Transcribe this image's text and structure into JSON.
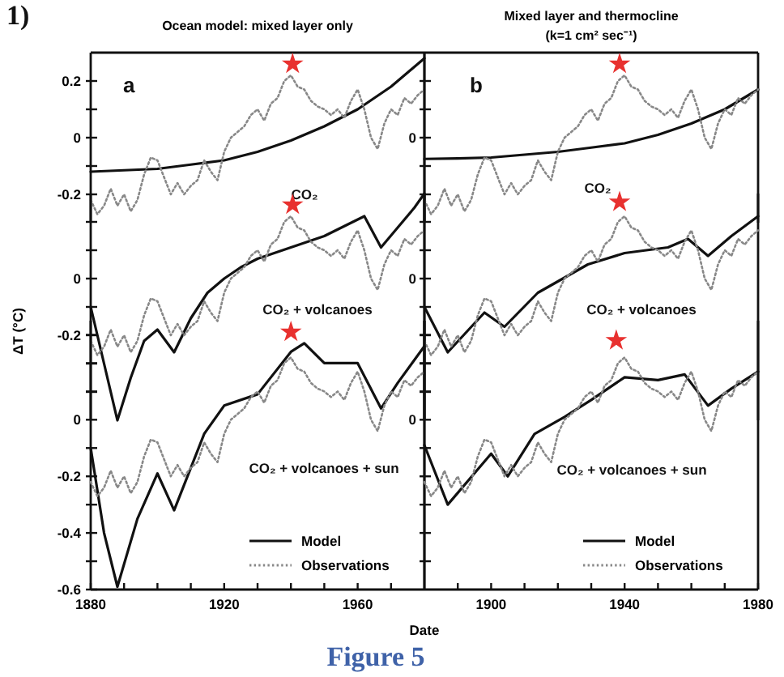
{
  "chart_data": [
    {
      "type": "line",
      "title": "Ocean model: mixed layer only",
      "annotations": [
        "1)",
        "a",
        "CO₂"
      ],
      "xlim": [
        1880,
        1980
      ],
      "ylim": [
        -0.3,
        0.3
      ],
      "yticks": [
        0.2,
        {
          "value": 0.1,
          "label": null
        },
        0,
        {
          "value": -0.1,
          "label": null
        },
        -0.2
      ],
      "tick_labels": "y",
      "series": [
        {
          "color": "#111111",
          "line_style": "solid",
          "x": [
            1880,
            1890,
            1900,
            1910,
            1920,
            1930,
            1940,
            1950,
            1960,
            1970,
            1980
          ],
          "values": [
            -0.12,
            -0.115,
            -0.11,
            -0.095,
            -0.08,
            -0.05,
            -0.01,
            0.04,
            0.1,
            0.18,
            0.28
          ]
        },
        {
          "color": "#888888",
          "line_style": "dotted",
          "x": [
            1880,
            1882,
            1884,
            1886,
            1888,
            1890,
            1892,
            1894,
            1896,
            1898,
            1900,
            1902,
            1904,
            1906,
            1908,
            1910,
            1912,
            1914,
            1916,
            1918,
            1920,
            1922,
            1924,
            1926,
            1928,
            1930,
            1932,
            1934,
            1936,
            1938,
            1940,
            1942,
            1944,
            1946,
            1948,
            1950,
            1952,
            1954,
            1956,
            1958,
            1960,
            1962,
            1964,
            1966,
            1968,
            1970,
            1972,
            1974,
            1976,
            1978,
            1980
          ],
          "values": [
            -0.22,
            -0.27,
            -0.24,
            -0.18,
            -0.24,
            -0.2,
            -0.26,
            -0.22,
            -0.13,
            -0.07,
            -0.08,
            -0.14,
            -0.2,
            -0.16,
            -0.2,
            -0.17,
            -0.15,
            -0.08,
            -0.12,
            -0.15,
            -0.05,
            0.0,
            0.02,
            0.04,
            0.08,
            0.1,
            0.06,
            0.12,
            0.14,
            0.2,
            0.22,
            0.18,
            0.17,
            0.13,
            0.11,
            0.1,
            0.08,
            0.1,
            0.07,
            0.13,
            0.17,
            0.1,
            0.0,
            -0.04,
            0.05,
            0.1,
            0.08,
            0.14,
            0.12,
            0.15,
            0.17
          ]
        },
        {
          "type": "scatter",
          "marker": "star",
          "color": "#e8312f",
          "x": [
            1940.5
          ],
          "values": [
            0.26
          ]
        }
      ]
    },
    {
      "type": "line",
      "title": "Mixed layer and thermocline",
      "subtitle": "(k=1 cm² sec⁻¹)",
      "annotations": [
        "b",
        "CO₂",
        "0"
      ],
      "xlim": [
        1880,
        1980
      ],
      "ylim": [
        -0.3,
        0.3
      ],
      "yticks": [
        {
          "value": 0.2,
          "label": null
        },
        {
          "value": 0.1,
          "label": null
        },
        {
          "value": 0,
          "label": null
        },
        {
          "value": -0.1,
          "label": null
        },
        {
          "value": -0.2,
          "label": null
        }
      ],
      "tick_labels": false,
      "series": [
        {
          "color": "#111111",
          "line_style": "solid",
          "x": [
            1880,
            1890,
            1900,
            1910,
            1920,
            1930,
            1940,
            1950,
            1960,
            1970,
            1980
          ],
          "values": [
            -0.075,
            -0.073,
            -0.07,
            -0.06,
            -0.05,
            -0.035,
            -0.02,
            0.01,
            0.05,
            0.1,
            0.17
          ]
        },
        {
          "color": "#888888",
          "line_style": "dotted",
          "x": [
            1880,
            1882,
            1884,
            1886,
            1888,
            1890,
            1892,
            1894,
            1896,
            1898,
            1900,
            1902,
            1904,
            1906,
            1908,
            1910,
            1912,
            1914,
            1916,
            1918,
            1920,
            1922,
            1924,
            1926,
            1928,
            1930,
            1932,
            1934,
            1936,
            1938,
            1940,
            1942,
            1944,
            1946,
            1948,
            1950,
            1952,
            1954,
            1956,
            1958,
            1960,
            1962,
            1964,
            1966,
            1968,
            1970,
            1972,
            1974,
            1976,
            1978,
            1980
          ],
          "values": [
            -0.22,
            -0.27,
            -0.24,
            -0.18,
            -0.24,
            -0.2,
            -0.26,
            -0.22,
            -0.13,
            -0.07,
            -0.08,
            -0.14,
            -0.2,
            -0.16,
            -0.2,
            -0.17,
            -0.15,
            -0.08,
            -0.12,
            -0.15,
            -0.05,
            0.0,
            0.02,
            0.04,
            0.08,
            0.1,
            0.06,
            0.12,
            0.14,
            0.2,
            0.22,
            0.18,
            0.17,
            0.13,
            0.11,
            0.1,
            0.08,
            0.1,
            0.07,
            0.13,
            0.17,
            0.1,
            0.0,
            -0.04,
            0.05,
            0.1,
            0.08,
            0.14,
            0.12,
            0.15,
            0.17
          ]
        },
        {
          "type": "scatter",
          "marker": "star",
          "color": "#e8312f",
          "x": [
            1938.5
          ],
          "values": [
            0.26
          ]
        }
      ]
    },
    {
      "type": "line",
      "ylabel": "ΔT (°C)",
      "annotations": [
        "CO₂ + volcanoes"
      ],
      "xlim": [
        1880,
        1980
      ],
      "ylim": [
        -0.5,
        0.3
      ],
      "yticks": [
        {
          "value": 0.2,
          "label": null
        },
        {
          "value": 0.1,
          "label": null
        },
        0,
        {
          "value": -0.1,
          "label": null
        },
        -0.2,
        {
          "value": -0.3,
          "label": null
        },
        {
          "value": -0.4,
          "label": null
        }
      ],
      "tick_labels": "y",
      "series": [
        {
          "color": "#111111",
          "line_style": "solid",
          "x": [
            1880,
            1884,
            1888,
            1892,
            1896,
            1900,
            1905,
            1910,
            1915,
            1920,
            1925,
            1930,
            1940,
            1950,
            1962,
            1967,
            1972,
            1977,
            1980
          ],
          "values": [
            -0.1,
            -0.3,
            -0.5,
            -0.35,
            -0.22,
            -0.18,
            -0.26,
            -0.14,
            -0.05,
            0.0,
            0.04,
            0.07,
            0.11,
            0.15,
            0.22,
            0.11,
            0.18,
            0.25,
            0.3
          ]
        },
        {
          "color": "#888888",
          "line_style": "dotted",
          "x": [
            1880,
            1882,
            1884,
            1886,
            1888,
            1890,
            1892,
            1894,
            1896,
            1898,
            1900,
            1902,
            1904,
            1906,
            1908,
            1910,
            1912,
            1914,
            1916,
            1918,
            1920,
            1922,
            1924,
            1926,
            1928,
            1930,
            1932,
            1934,
            1936,
            1938,
            1940,
            1942,
            1944,
            1946,
            1948,
            1950,
            1952,
            1954,
            1956,
            1958,
            1960,
            1962,
            1964,
            1966,
            1968,
            1970,
            1972,
            1974,
            1976,
            1978,
            1980
          ],
          "values": [
            -0.22,
            -0.27,
            -0.24,
            -0.18,
            -0.24,
            -0.2,
            -0.26,
            -0.22,
            -0.13,
            -0.07,
            -0.08,
            -0.14,
            -0.2,
            -0.16,
            -0.2,
            -0.17,
            -0.15,
            -0.08,
            -0.12,
            -0.15,
            -0.05,
            0.0,
            0.02,
            0.04,
            0.08,
            0.1,
            0.06,
            0.12,
            0.14,
            0.2,
            0.22,
            0.18,
            0.17,
            0.13,
            0.11,
            0.1,
            0.08,
            0.1,
            0.07,
            0.13,
            0.17,
            0.1,
            0.0,
            -0.04,
            0.05,
            0.1,
            0.08,
            0.14,
            0.12,
            0.15,
            0.17
          ]
        },
        {
          "type": "scatter",
          "marker": "star",
          "color": "#e8312f",
          "x": [
            1940.5
          ],
          "values": [
            0.26
          ]
        }
      ]
    },
    {
      "type": "line",
      "annotations": [
        "CO₂ + volcanoes",
        "0"
      ],
      "xlim": [
        1880,
        1980
      ],
      "ylim": [
        -0.5,
        0.3
      ],
      "yticks": [
        {
          "value": 0.2,
          "label": null
        },
        {
          "value": 0.1,
          "label": null
        },
        {
          "value": 0,
          "label": null
        },
        {
          "value": -0.1,
          "label": null
        },
        {
          "value": -0.2,
          "label": null
        },
        {
          "value": -0.3,
          "label": null
        },
        {
          "value": -0.4,
          "label": null
        }
      ],
      "tick_labels": false,
      "series": [
        {
          "color": "#111111",
          "line_style": "solid",
          "x": [
            1880,
            1887,
            1898,
            1904,
            1914,
            1929,
            1940,
            1953,
            1959,
            1965,
            1972,
            1980
          ],
          "values": [
            -0.1,
            -0.26,
            -0.12,
            -0.17,
            -0.05,
            0.05,
            0.09,
            0.11,
            0.14,
            0.08,
            0.15,
            0.22
          ]
        },
        {
          "color": "#888888",
          "line_style": "dotted",
          "x": [
            1880,
            1882,
            1884,
            1886,
            1888,
            1890,
            1892,
            1894,
            1896,
            1898,
            1900,
            1902,
            1904,
            1906,
            1908,
            1910,
            1912,
            1914,
            1916,
            1918,
            1920,
            1922,
            1924,
            1926,
            1928,
            1930,
            1932,
            1934,
            1936,
            1938,
            1940,
            1942,
            1944,
            1946,
            1948,
            1950,
            1952,
            1954,
            1956,
            1958,
            1960,
            1962,
            1964,
            1966,
            1968,
            1970,
            1972,
            1974,
            1976,
            1978,
            1980
          ],
          "values": [
            -0.22,
            -0.27,
            -0.24,
            -0.18,
            -0.24,
            -0.2,
            -0.26,
            -0.22,
            -0.13,
            -0.07,
            -0.08,
            -0.14,
            -0.2,
            -0.16,
            -0.2,
            -0.17,
            -0.15,
            -0.08,
            -0.12,
            -0.15,
            -0.05,
            0.0,
            0.02,
            0.04,
            0.08,
            0.1,
            0.06,
            0.12,
            0.14,
            0.2,
            0.22,
            0.18,
            0.17,
            0.13,
            0.11,
            0.1,
            0.08,
            0.1,
            0.07,
            0.13,
            0.17,
            0.1,
            0.0,
            -0.04,
            0.05,
            0.1,
            0.08,
            0.14,
            0.12,
            0.15,
            0.17
          ]
        },
        {
          "type": "scatter",
          "marker": "star",
          "color": "#e8312f",
          "x": [
            1938.5
          ],
          "values": [
            0.27
          ]
        }
      ]
    },
    {
      "type": "line",
      "xlabel": "Date",
      "annotations": [
        "Figure 5",
        "CO₂ + volcanoes + sun"
      ],
      "xlim": [
        1880,
        1980
      ],
      "ylim": [
        -0.6,
        0.35
      ],
      "xticks": [
        1880,
        {
          "value": 1890,
          "label": null
        },
        {
          "value": 1900,
          "label": null
        },
        {
          "value": 1910,
          "label": null
        },
        1920,
        {
          "value": 1930,
          "label": null
        },
        {
          "value": 1940,
          "label": null
        },
        {
          "value": 1950,
          "label": null
        },
        1960,
        {
          "value": 1970,
          "label": null
        }
      ],
      "yticks": [
        {
          "value": 0.3,
          "label": null
        },
        {
          "value": 0.2,
          "label": null
        },
        {
          "value": 0.1,
          "label": null
        },
        0,
        {
          "value": -0.1,
          "label": null
        },
        -0.2,
        {
          "value": -0.3,
          "label": null
        },
        -0.4,
        {
          "value": -0.5,
          "label": null
        },
        -0.6
      ],
      "legend": "bottom right",
      "series": [
        {
          "name": "Model",
          "color": "#111111",
          "line_style": "solid",
          "x": [
            1880,
            1884,
            1888,
            1894,
            1900,
            1905,
            1914,
            1920,
            1930,
            1940,
            1944,
            1950,
            1960,
            1967,
            1972,
            1980
          ],
          "values": [
            -0.1,
            -0.4,
            -0.59,
            -0.35,
            -0.19,
            -0.32,
            -0.05,
            0.05,
            0.09,
            0.24,
            0.27,
            0.2,
            0.2,
            0.04,
            0.13,
            0.26
          ]
        },
        {
          "name": "Observations",
          "color": "#888888",
          "line_style": "dotted",
          "x": [
            1880,
            1882,
            1884,
            1886,
            1888,
            1890,
            1892,
            1894,
            1896,
            1898,
            1900,
            1902,
            1904,
            1906,
            1908,
            1910,
            1912,
            1914,
            1916,
            1918,
            1920,
            1922,
            1924,
            1926,
            1928,
            1930,
            1932,
            1934,
            1936,
            1938,
            1940,
            1942,
            1944,
            1946,
            1948,
            1950,
            1952,
            1954,
            1956,
            1958,
            1960,
            1962,
            1964,
            1966,
            1968,
            1970,
            1972,
            1974,
            1976,
            1978,
            1980
          ],
          "values": [
            -0.22,
            -0.27,
            -0.24,
            -0.18,
            -0.24,
            -0.2,
            -0.26,
            -0.22,
            -0.13,
            -0.07,
            -0.08,
            -0.14,
            -0.2,
            -0.16,
            -0.2,
            -0.17,
            -0.15,
            -0.08,
            -0.12,
            -0.15,
            -0.05,
            0.0,
            0.02,
            0.04,
            0.08,
            0.1,
            0.06,
            0.12,
            0.14,
            0.2,
            0.22,
            0.18,
            0.17,
            0.13,
            0.11,
            0.1,
            0.08,
            0.1,
            0.07,
            0.13,
            0.17,
            0.1,
            0.0,
            -0.04,
            0.05,
            0.1,
            0.08,
            0.14,
            0.12,
            0.15,
            0.17
          ]
        },
        {
          "type": "scatter",
          "marker": "star",
          "color": "#e8312f",
          "x": [
            1940
          ],
          "values": [
            0.31
          ]
        }
      ]
    },
    {
      "type": "line",
      "annotations": [
        "CO₂ + volcanoes + sun",
        "0"
      ],
      "tick_labels": "x",
      "xlim": [
        1880,
        1980
      ],
      "ylim": [
        -0.6,
        0.35
      ],
      "xticks": [
        {
          "value": 1890,
          "label": null
        },
        1900,
        {
          "value": 1910,
          "label": null
        },
        {
          "value": 1920,
          "label": null
        },
        {
          "value": 1930,
          "label": null
        },
        1940,
        {
          "value": 1950,
          "label": null
        },
        {
          "value": 1960,
          "label": null
        },
        {
          "value": 1970,
          "label": null
        },
        1980
      ],
      "yticks": [
        {
          "value": 0.3,
          "label": null
        },
        {
          "value": 0.2,
          "label": null
        },
        {
          "value": 0.1,
          "label": null
        },
        0,
        {
          "value": -0.1,
          "label": null
        },
        {
          "value": -0.2,
          "label": null
        },
        {
          "value": -0.3,
          "label": null
        },
        {
          "value": -0.4,
          "label": null
        },
        {
          "value": -0.5,
          "label": null
        }
      ],
      "legend": "bottom right",
      "series": [
        {
          "name": "Model",
          "color": "#111111",
          "line_style": "solid",
          "x": [
            1880,
            1887,
            1900,
            1905,
            1913,
            1922,
            1930,
            1940,
            1950,
            1958,
            1965,
            1972,
            1980
          ],
          "values": [
            -0.09,
            -0.3,
            -0.12,
            -0.2,
            -0.05,
            0.01,
            0.07,
            0.15,
            0.14,
            0.16,
            0.05,
            0.11,
            0.17
          ]
        },
        {
          "name": "Observations",
          "color": "#888888",
          "line_style": "dotted",
          "x": [
            1880,
            1882,
            1884,
            1886,
            1888,
            1890,
            1892,
            1894,
            1896,
            1898,
            1900,
            1902,
            1904,
            1906,
            1908,
            1910,
            1912,
            1914,
            1916,
            1918,
            1920,
            1922,
            1924,
            1926,
            1928,
            1930,
            1932,
            1934,
            1936,
            1938,
            1940,
            1942,
            1944,
            1946,
            1948,
            1950,
            1952,
            1954,
            1956,
            1958,
            1960,
            1962,
            1964,
            1966,
            1968,
            1970,
            1972,
            1974,
            1976,
            1978,
            1980
          ],
          "values": [
            -0.22,
            -0.27,
            -0.24,
            -0.18,
            -0.24,
            -0.2,
            -0.26,
            -0.22,
            -0.13,
            -0.07,
            -0.08,
            -0.14,
            -0.2,
            -0.16,
            -0.2,
            -0.17,
            -0.15,
            -0.08,
            -0.12,
            -0.15,
            -0.05,
            0.0,
            0.02,
            0.04,
            0.08,
            0.1,
            0.06,
            0.12,
            0.14,
            0.2,
            0.22,
            0.18,
            0.17,
            0.13,
            0.11,
            0.1,
            0.08,
            0.1,
            0.07,
            0.13,
            0.17,
            0.1,
            0.0,
            -0.04,
            0.05,
            0.1,
            0.08,
            0.14,
            0.12,
            0.15,
            0.17
          ]
        },
        {
          "type": "scatter",
          "marker": "star",
          "color": "#e8312f",
          "x": [
            1937.5
          ],
          "values": [
            0.28
          ]
        }
      ]
    }
  ]
}
